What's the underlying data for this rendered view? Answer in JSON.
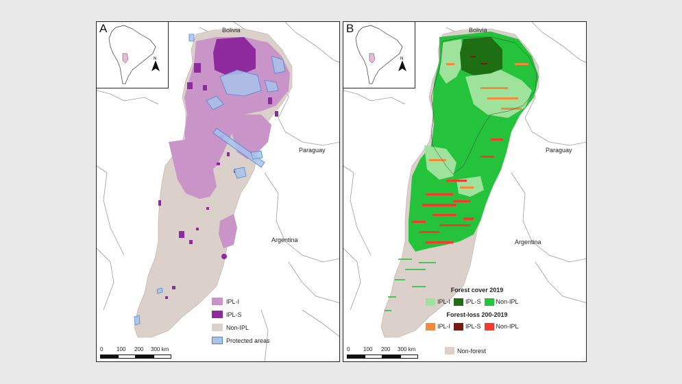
{
  "panel_a": {
    "letter": "A",
    "labels": {
      "bolivia": "Bolivia",
      "paraguay": "Paraguay",
      "argentina": "Argentina"
    },
    "legend": [
      {
        "label": "IPL-I",
        "color": "#c994c7"
      },
      {
        "label": "IPL-S",
        "color": "#8e2a9e"
      },
      {
        "label": "Non-IPL",
        "color": "#dcd0cb"
      },
      {
        "label": "Protected areas",
        "color": "#a9c3ea",
        "border": "#4a86d0"
      }
    ],
    "scale": {
      "ticks": [
        "0",
        "100",
        "200",
        "300 km"
      ]
    }
  },
  "panel_b": {
    "letter": "B",
    "labels": {
      "bolivia": "Bolivia",
      "paraguay": "Paraguay",
      "argentina": "Argentina"
    },
    "forest_cover": {
      "title": "Forest cover 2019",
      "items": [
        {
          "label": "IPL-I",
          "color": "#9ee29b"
        },
        {
          "label": "IPL-S",
          "color": "#1e6e14"
        },
        {
          "label": "Non-IPL",
          "color": "#25c23c"
        }
      ]
    },
    "forest_loss": {
      "title": "Forest-loss 200-2019",
      "items": [
        {
          "label": "IPL-I",
          "color": "#f28a3a"
        },
        {
          "label": "IPL-S",
          "color": "#7a1a0e"
        },
        {
          "label": "Non-IPL",
          "color": "#f23a2e"
        }
      ]
    },
    "non_forest": {
      "label": "Non-forest",
      "color": "#dcd0cb"
    },
    "scale": {
      "ticks": [
        "0",
        "100",
        "200",
        "300 km"
      ]
    }
  }
}
